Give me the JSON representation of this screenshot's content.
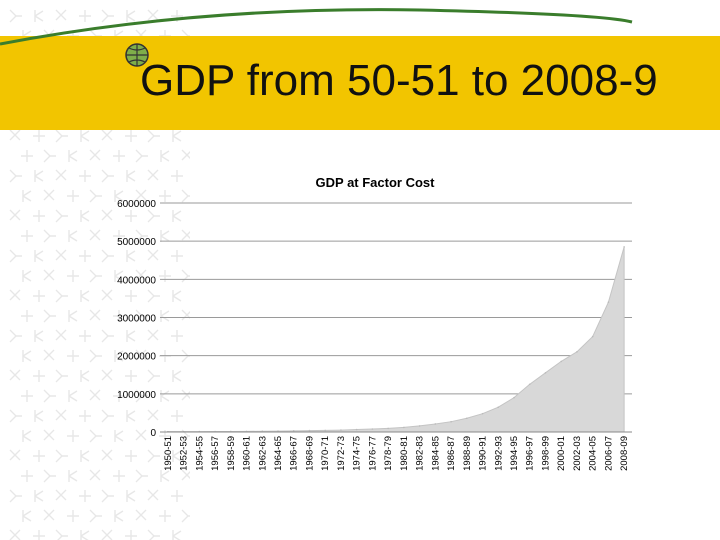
{
  "slide": {
    "title": "GDP from 50-51 to 2008-9",
    "accent_color": "#f2c500",
    "decoration_color": "#3a7d2c"
  },
  "chart_data": {
    "type": "area",
    "title": "GDP at Factor Cost",
    "xlabel": "",
    "ylabel": "",
    "ylim": [
      0,
      6000000
    ],
    "y_ticks": [
      "0",
      "1000000",
      "2000000",
      "3000000",
      "4000000",
      "5000000",
      "6000000"
    ],
    "grid": true,
    "categories": [
      "1950-51",
      "1952-53",
      "1954-55",
      "1956-57",
      "1958-59",
      "1960-61",
      "1962-63",
      "1964-65",
      "1966-67",
      "1968-69",
      "1970-71",
      "1972-73",
      "1974-75",
      "1976-77",
      "1978-79",
      "1980-81",
      "1982-83",
      "1984-85",
      "1986-87",
      "1988-89",
      "1990-91",
      "1992-93",
      "1994-95",
      "1996-97",
      "1998-99",
      "2000-01",
      "2002-03",
      "2004-05",
      "2006-07",
      "2008-09"
    ],
    "series": [
      {
        "values": [
          9000,
          10000,
          11000,
          12000,
          14000,
          16000,
          20000,
          24000,
          30000,
          37000,
          42000,
          50000,
          65000,
          78000,
          95000,
          120000,
          160000,
          210000,
          270000,
          360000,
          480000,
          650000,
          900000,
          1250000,
          1550000,
          1850000,
          2100000,
          2500000,
          3400000,
          4850000
        ],
        "color": "#d8d8d8"
      }
    ]
  }
}
